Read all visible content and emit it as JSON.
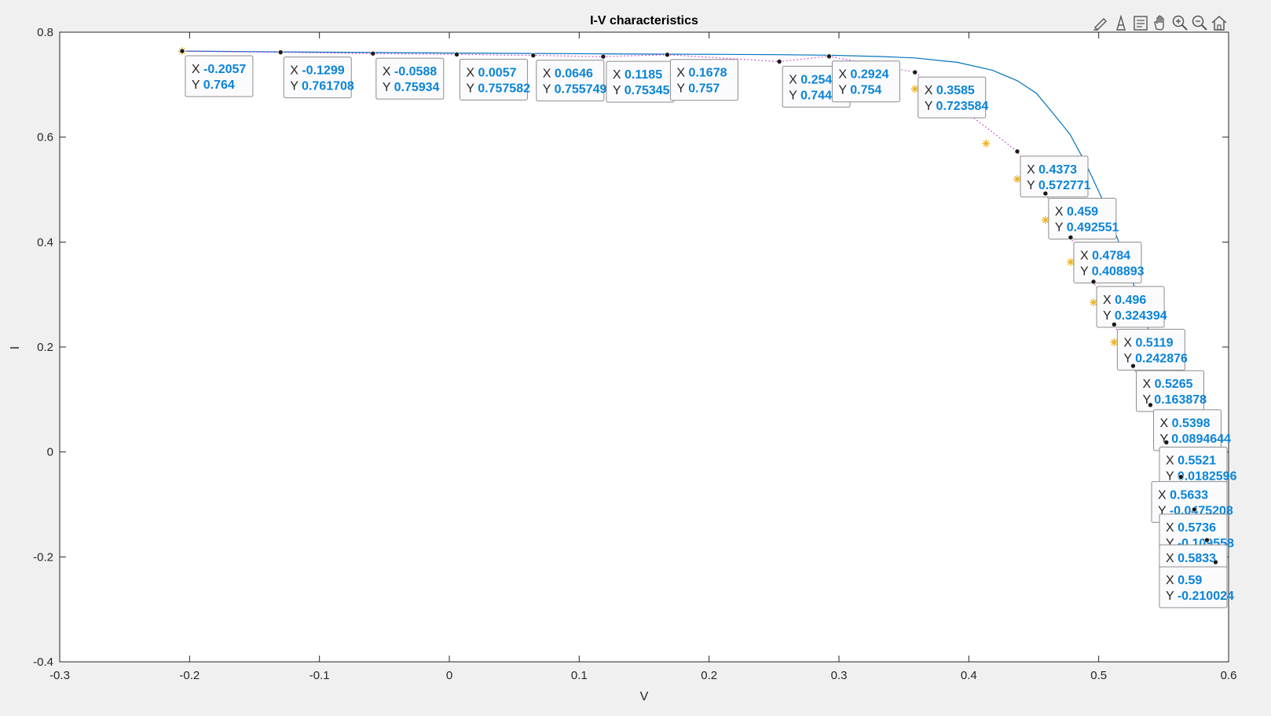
{
  "chart_data": {
    "type": "line",
    "title": "I-V characteristics",
    "xlabel": "V",
    "ylabel": "I",
    "xlim": [
      -0.3,
      0.6
    ],
    "ylim": [
      -0.4,
      0.8
    ],
    "xticks": [
      "-0.3",
      "-0.2",
      "-0.1",
      "0",
      "0.1",
      "0.2",
      "0.3",
      "0.4",
      "0.5",
      "0.6"
    ],
    "yticks": [
      "-0.4",
      "-0.2",
      "0",
      "0.2",
      "0.4",
      "0.6",
      "0.8"
    ],
    "grid": false,
    "box": true,
    "series": [
      {
        "style": "solid",
        "color": "#0072bd",
        "x": [
          -0.2057,
          -0.1299,
          -0.0588,
          0.0057,
          0.0646,
          0.1185,
          0.1678,
          0.2124,
          0.2541,
          0.2924,
          0.3318,
          0.3585,
          0.3915,
          0.4183,
          0.4373,
          0.452,
          0.465,
          0.478,
          0.49,
          0.505,
          0.52,
          0.535,
          0.55,
          0.565,
          0.58,
          0.59
        ],
        "y": [
          0.764,
          0.7625,
          0.7612,
          0.7602,
          0.7594,
          0.7587,
          0.7581,
          0.7576,
          0.757,
          0.7561,
          0.7536,
          0.7509,
          0.7424,
          0.7273,
          0.7076,
          0.6837,
          0.645,
          0.605,
          0.55,
          0.47,
          0.37,
          0.26,
          0.14,
          0.01,
          -0.12,
          -0.21
        ]
      },
      {
        "style": "dotted",
        "color": "#d02ad0",
        "x": [
          -0.2057,
          -0.1299,
          -0.0588,
          0.0057,
          0.0646,
          0.1185,
          0.1678,
          0.2541,
          0.2924,
          0.3585,
          0.4373,
          0.459,
          0.4784,
          0.496,
          0.5119,
          0.5265,
          0.5398,
          0.5521,
          0.5633,
          0.5736,
          0.5833,
          0.59
        ],
        "y": [
          0.764,
          0.761708,
          0.75934,
          0.757582,
          0.755749,
          0.75345,
          0.757,
          0.744,
          0.754,
          0.723584,
          0.572771,
          0.492551,
          0.408893,
          0.324394,
          0.242876,
          0.163878,
          0.0894644,
          0.0182596,
          -0.0475208,
          -0.109558,
          -0.168,
          -0.210024
        ]
      },
      {
        "style": "markers",
        "marker": "asterisk",
        "color": "#edb120",
        "x": [
          -0.2057,
          0.3585,
          0.4133,
          0.4373,
          0.459,
          0.4784,
          0.496,
          0.5119
        ],
        "y": [
          0.764,
          0.692,
          0.588,
          0.52,
          0.442,
          0.362,
          0.285,
          0.209
        ]
      }
    ],
    "datatips": [
      {
        "x": "-0.2057",
        "y": "0.764",
        "px": -0.2057,
        "py": 0.764
      },
      {
        "x": "-0.1299",
        "y": "0.761708",
        "px": -0.1299,
        "py": 0.761708
      },
      {
        "x": "-0.0588",
        "y": "0.75934",
        "px": -0.0588,
        "py": 0.75934
      },
      {
        "x": "0.0057",
        "y": "0.757582",
        "px": 0.0057,
        "py": 0.757582
      },
      {
        "x": "0.0646",
        "y": "0.755749",
        "px": 0.0646,
        "py": 0.755749
      },
      {
        "x": "0.1185",
        "y": "0.75345",
        "px": 0.1185,
        "py": 0.75345
      },
      {
        "x": "0.1678",
        "y": "0.757",
        "px": 0.1678,
        "py": 0.757
      },
      {
        "x": "0.254",
        "y": "0.744",
        "px": 0.2541,
        "py": 0.744
      },
      {
        "x": "0.2924",
        "y": "0.754",
        "px": 0.2924,
        "py": 0.754
      },
      {
        "x": "0.3585",
        "y": "0.723584",
        "px": 0.3585,
        "py": 0.723584
      },
      {
        "x": "0.4373",
        "y": "0.572771",
        "px": 0.4373,
        "py": 0.572771
      },
      {
        "x": "0.459",
        "y": "0.492551",
        "px": 0.459,
        "py": 0.492551
      },
      {
        "x": "0.4784",
        "y": "0.408893",
        "px": 0.4784,
        "py": 0.408893
      },
      {
        "x": "0.496",
        "y": "0.324394",
        "px": 0.496,
        "py": 0.324394
      },
      {
        "x": "0.5119",
        "y": "0.242876",
        "px": 0.5119,
        "py": 0.242876
      },
      {
        "x": "0.5265",
        "y": "0.163878",
        "px": 0.5265,
        "py": 0.163878
      },
      {
        "x": "0.5398",
        "y": "0.0894644",
        "px": 0.5398,
        "py": 0.0894644
      },
      {
        "x": "0.5521",
        "y": "0.0182596",
        "px": 0.5521,
        "py": 0.0182596
      },
      {
        "x": "0.5633",
        "y": "-0.0475208",
        "px": 0.5633,
        "py": -0.0475208
      },
      {
        "x": "0.5736",
        "y": "-0.109558",
        "px": 0.5736,
        "py": -0.109558
      },
      {
        "x": "0.5833",
        "y": "",
        "px": 0.5833,
        "py": -0.168
      },
      {
        "x": "0.59",
        "y": "-0.210024",
        "px": 0.59,
        "py": -0.210024
      }
    ]
  },
  "toolbar": {
    "icons": [
      "brush-icon",
      "data-tips-icon",
      "export-icon",
      "pan-hand-icon",
      "zoom-in-icon",
      "zoom-out-icon",
      "home-icon"
    ]
  }
}
